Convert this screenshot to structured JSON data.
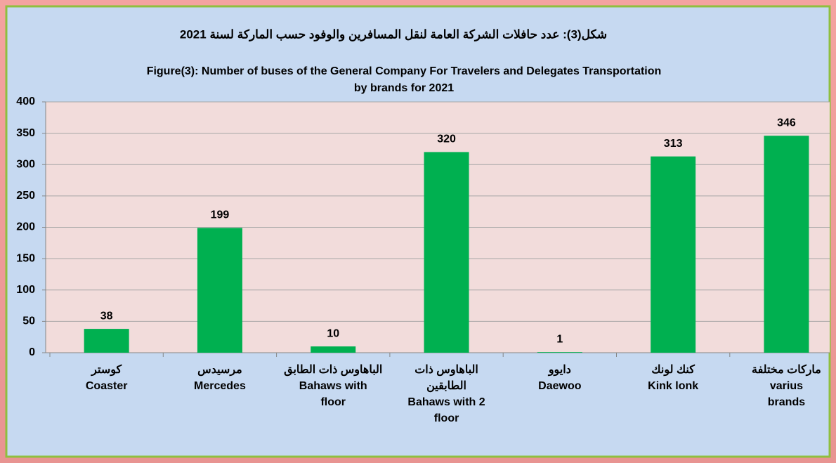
{
  "chart_data": {
    "type": "bar",
    "title_ar": "شكل(3): عدد حافلات الشركة العامة لنقل المسافرين والوفود حسب الماركة لسنة 2021",
    "title": [
      "Figure(3): Number of buses of the General Company For Travelers and Delegates Transportation",
      "by brands for 2021"
    ],
    "categories": [
      [
        "كوستر",
        "Coaster"
      ],
      [
        "مرسيدس",
        "Mercedes"
      ],
      [
        "الباهاوس ذات الطابق",
        "Bahaws with",
        "floor"
      ],
      [
        "الباهاوس ذات",
        "الطابقين",
        "Bahaws with 2",
        "floor"
      ],
      [
        "دايوو",
        "Daewoo"
      ],
      [
        "كنك لونك",
        "Kink lonk"
      ],
      [
        "ماركات مختلفة",
        "varius",
        "brands"
      ]
    ],
    "values": [
      38,
      199,
      10,
      320,
      1,
      313,
      346
    ],
    "color": "#00b050",
    "ylim": [
      0,
      400
    ],
    "yticks": [
      0,
      50,
      100,
      150,
      200,
      250,
      300,
      350,
      400
    ],
    "grid": true
  }
}
